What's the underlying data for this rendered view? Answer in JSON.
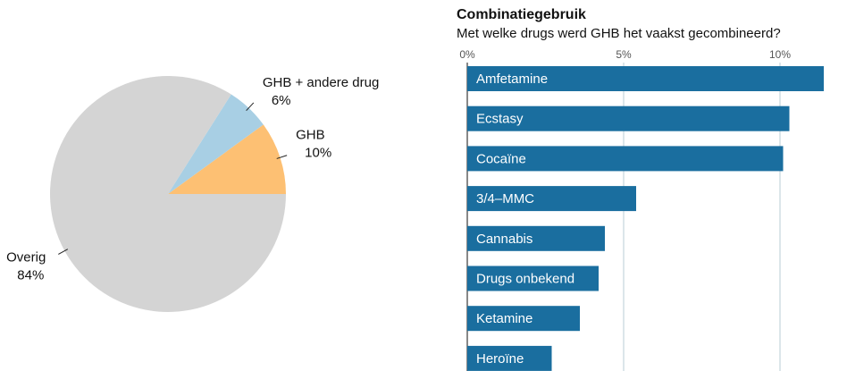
{
  "chart_data": [
    {
      "type": "pie",
      "categories": [
        "GHB",
        "GHB  + andere drug",
        "Overig"
      ],
      "values": [
        10,
        6,
        84
      ],
      "value_labels": [
        "10%",
        "6%",
        "84%"
      ],
      "colors": [
        "#fdc073",
        "#a8cfe4",
        "#d4d4d4"
      ]
    },
    {
      "type": "bar",
      "title": "Combinatiegebruik",
      "subtitle": "Met welke drugs werd GHB het vaakst gecombineerd?",
      "categories": [
        "Amfetamine",
        "Ecstasy",
        "Cocaïne",
        "3/4–MMC",
        "Cannabis",
        "Drugs onbekend",
        "Ketamine",
        "Heroïne"
      ],
      "values": [
        11.4,
        10.3,
        10.1,
        5.4,
        4.4,
        4.2,
        3.6,
        2.7
      ],
      "color": "#1a6e9f",
      "xlim": [
        0,
        12
      ],
      "xticks": [
        {
          "value": 0,
          "label": "0%"
        },
        {
          "value": 5,
          "label": "5%"
        },
        {
          "value": 10,
          "label": "10%"
        }
      ],
      "grid": true
    }
  ]
}
